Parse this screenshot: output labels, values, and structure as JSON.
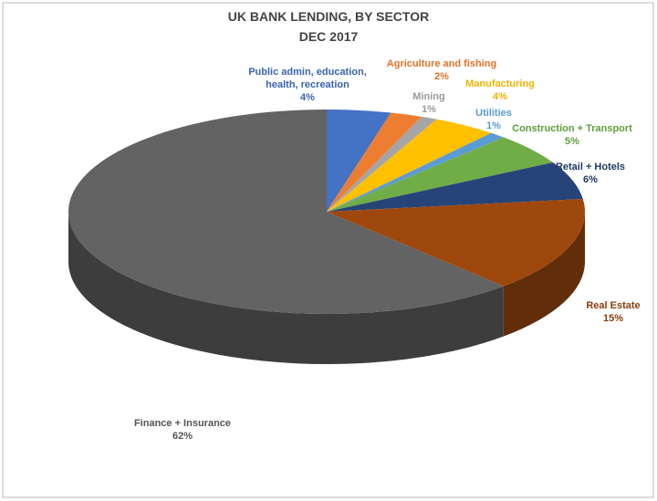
{
  "chart_data": {
    "type": "pie",
    "title": "UK BANK LENDING, BY SECTOR",
    "subtitle": "DEC 2017",
    "categories": [
      "Public admin, education, health, recreation",
      "Agriculture and fishing",
      "Mining",
      "Manufacturing",
      "Utilities",
      "Construction + Transport",
      "Retail + Hotels",
      "Real Estate",
      "Finance + Insurance"
    ],
    "values": [
      4,
      2,
      1,
      4,
      1,
      5,
      6,
      15,
      62
    ],
    "value_labels": [
      "4%",
      "2%",
      "1%",
      "4%",
      "1%",
      "5%",
      "6%",
      "15%",
      "62%"
    ],
    "colors": [
      "#4472c4",
      "#ed7d31",
      "#a5a5a5",
      "#ffc000",
      "#5b9bd5",
      "#70ad47",
      "#264478",
      "#9e480e",
      "#636363"
    ],
    "label_colors": [
      "#3a64b0",
      "#e0742a",
      "#9a9a9a",
      "#f0b400",
      "#5b9bd5",
      "#5f9e3a",
      "#203864",
      "#8a3d0c",
      "#555555"
    ]
  }
}
